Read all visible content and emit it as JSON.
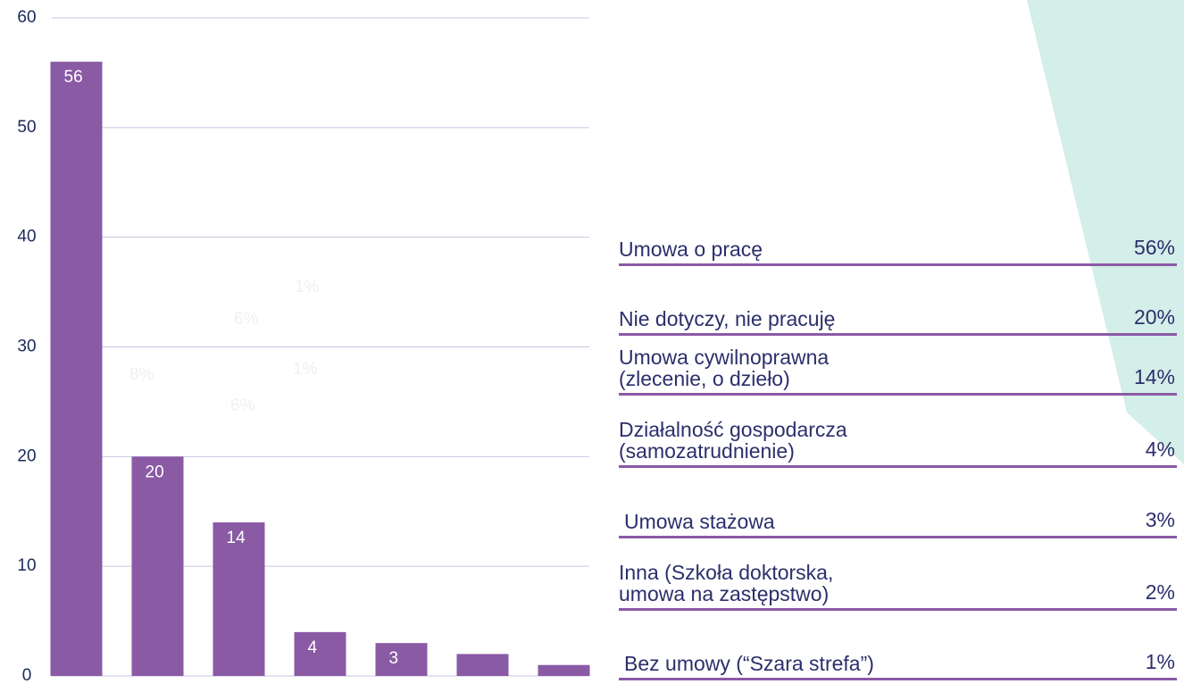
{
  "chart_data": {
    "type": "bar",
    "categories": [
      "Umowa o pracę",
      "Nie dotyczy, nie pracuję",
      "Umowa cywilnoprawna\n(zlecenie, o dzieło)",
      "Działalność gospodarcza\n(samozatrudnienie)",
      "Umowa stażowa",
      "Inna (Szkoła doktorska,\numowa na zastępstwo)",
      "Bez umowy (“Szara strefa”)"
    ],
    "values": [
      56,
      20,
      14,
      4,
      3,
      2,
      1
    ],
    "value_labels": [
      "56%",
      "20%",
      "14%",
      "4%",
      "3%",
      "2%",
      "1%"
    ],
    "color": "#8a5aa5",
    "ylim": [
      0,
      60
    ],
    "yticks": [
      0,
      10,
      20,
      30,
      40,
      50,
      60
    ],
    "grid": true,
    "annotations": [
      "8%",
      "6%",
      "1%",
      "1%",
      "6%"
    ]
  }
}
